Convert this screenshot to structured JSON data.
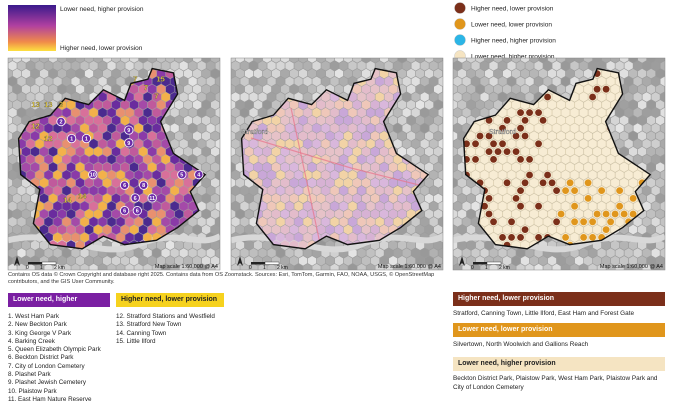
{
  "legend_left": {
    "top": "Lower need, higher provision",
    "bottom": "Higher need, lower provision"
  },
  "legend_right": [
    {
      "label": "Higher need, lower provision",
      "color": "#7b2f1a"
    },
    {
      "label": "Lower need, lower provision",
      "color": "#e0961c"
    },
    {
      "label": "Higher need, higher provision",
      "color": "#2bb5e6"
    },
    {
      "label": "Lower need, higher provision",
      "color": "#f5e4c2"
    }
  ],
  "maps": [
    {
      "markers": {
        "lower_need": [
          "1",
          "1",
          "2",
          "9",
          "9",
          "6",
          "6",
          "6",
          "6",
          "8",
          "4",
          "5",
          "11",
          "10"
        ],
        "higher_need": [
          "13",
          "13",
          "3",
          "12",
          "12",
          "14",
          "14",
          "7",
          "7",
          "7",
          "15"
        ]
      },
      "scale_text": "Map scale 1:60,000 @ A4",
      "scale_bar": [
        "0",
        "1",
        "2 km"
      ]
    },
    {
      "place": "Stratford",
      "scale_text": "Map scale 1:60,000 @ A4",
      "scale_bar": [
        "0",
        "1",
        "2 km"
      ]
    },
    {
      "place": "Stratford",
      "scale_text": "Map scale 1:60,000 @ A4",
      "scale_bar": [
        "0",
        "1",
        "2 km"
      ]
    }
  ],
  "attribution": "Contains OS data © Crown Copyright and database right 2025. Contains data from OS Zoomstack. Sources: Esri, TomTom, Garmin, FAO, NOAA, USGS, © OpenStreetMap contributors, and the GIS User Community.",
  "groups": [
    {
      "title": "Lower need, higher provision",
      "color": "#7a1fa2",
      "items": [
        "1. West Ham Park",
        "2. New Beckton Park",
        "3. King George V Park",
        "4. Barking Creek",
        "5. Queen Elizabeth Olympic Park",
        "6. Beckton District Park",
        "7. City of London Cemetery",
        "8. Plashet Park",
        "9. Plashet Jewish Cemetery",
        "10. Plaistow Park",
        "11. East Ham Nature Reserve"
      ]
    },
    {
      "title": "Higher need, lower provision",
      "color": "#f6d21e",
      "items": [
        "12. Stratford Stations and Westfield",
        "13. Stratford New Town",
        "14. Canning Town",
        "15. Little Ilford"
      ]
    }
  ],
  "summary": [
    {
      "title": "Higher need, lower provision",
      "color": "#7b2f1a",
      "text": "Stratford, Canning Town, Little Ilford, East Ham and Forest Gate"
    },
    {
      "title": "Lower need, lower provision",
      "color": "#e0961c",
      "text": "Silvertown, North Woolwich and Gallions Reach"
    },
    {
      "title": "Lower need, higher provision",
      "color": "#f5e4c2",
      "text": "Beckton District Park, Plaistow Park, West Ham Park, Plaistow Park and City of London Cemetery"
    }
  ]
}
